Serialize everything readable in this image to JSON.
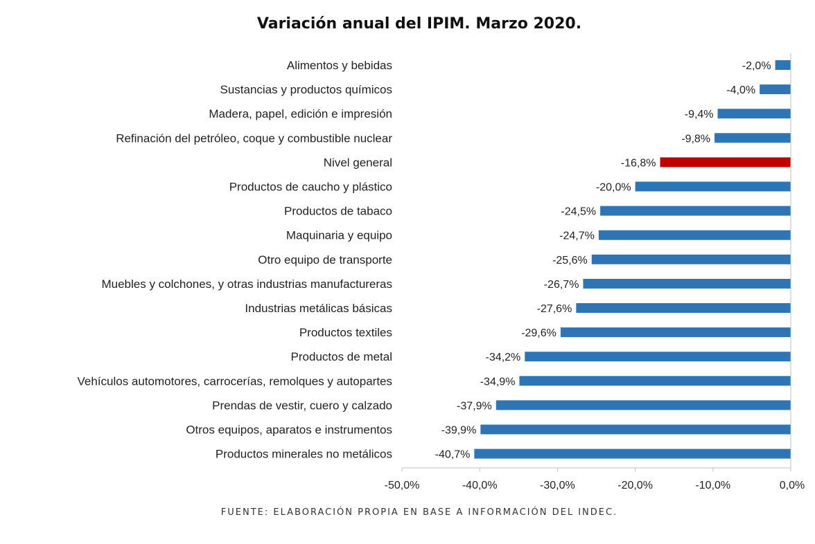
{
  "chart_data": {
    "type": "bar",
    "orientation": "horizontal",
    "title": "Variación anual del IPIM. Marzo 2020.",
    "source": "FUENTE: ELABORACIÓN PROPIA EN BASE A INFORMACIÓN DEL INDEC.",
    "categories": [
      "Alimentos y bebidas",
      "Sustancias y productos químicos",
      "Madera, papel, edición e impresión",
      "Refinación del petróleo, coque y combustible nuclear",
      "Nivel general",
      "Productos de caucho y plástico",
      "Productos de tabaco",
      "Maquinaria y equipo",
      "Otro equipo de transporte",
      "Muebles y colchones, y otras industrias manufactureras",
      "Industrias metálicas básicas",
      "Productos textiles",
      "Productos de metal",
      "Vehículos automotores, carrocerías, remolques y autopartes",
      "Prendas de vestir, cuero y calzado",
      "Otros equipos, aparatos e instrumentos",
      "Productos minerales no metálicos"
    ],
    "values": [
      -2.0,
      -4.0,
      -9.4,
      -9.8,
      -16.8,
      -20.0,
      -24.5,
      -24.7,
      -25.6,
      -26.7,
      -27.6,
      -29.6,
      -34.2,
      -34.9,
      -37.9,
      -39.9,
      -40.7
    ],
    "value_labels": [
      "-2,0%",
      "-4,0%",
      "-9,4%",
      "-9,8%",
      "-16,8%",
      "-20,0%",
      "-24,5%",
      "-24,7%",
      "-25,6%",
      "-26,7%",
      "-27,6%",
      "-29,6%",
      "-34,2%",
      "-34,9%",
      "-37,9%",
      "-39,9%",
      "-40,7%"
    ],
    "highlight_category": "Nivel general",
    "bar_color": "#2e75b6",
    "highlight_color": "#c00000",
    "xlim": [
      -50,
      0
    ],
    "xticks": [
      -50,
      -40,
      -30,
      -20,
      -10,
      0
    ],
    "xtick_labels": [
      "-50,0%",
      "-40,0%",
      "-30,0%",
      "-20,0%",
      "-10,0%",
      "0,0%"
    ],
    "xlabel": "",
    "ylabel": "",
    "grid": false,
    "legend": false
  }
}
